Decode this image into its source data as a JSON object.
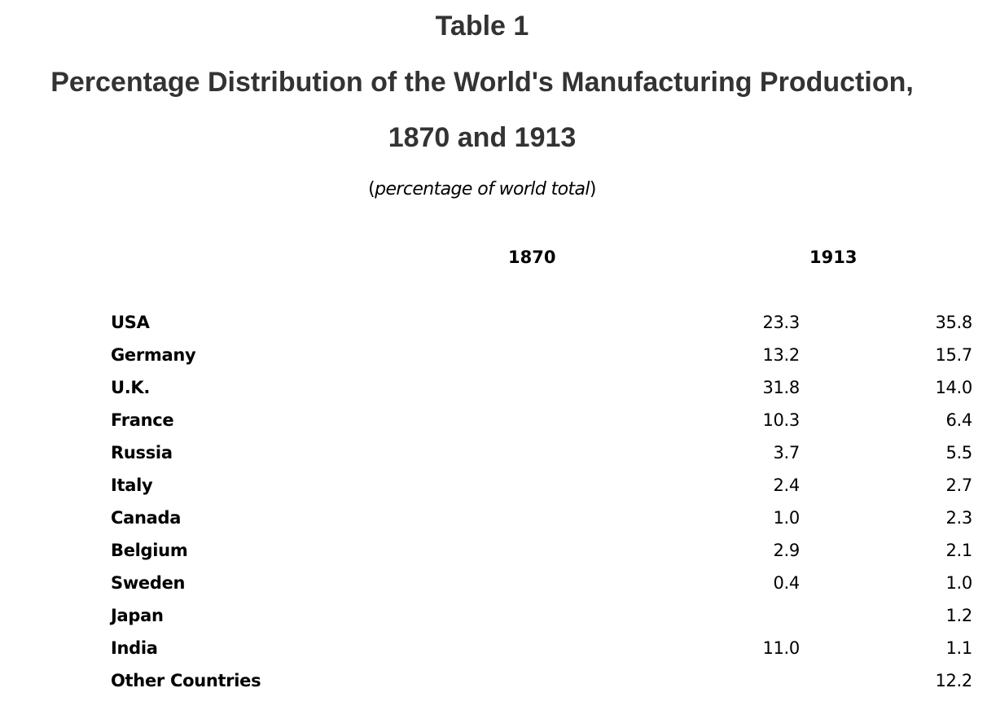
{
  "document": {
    "table_label": "Table 1",
    "title_main": "Percentage Distribution of the World's Manufacturing Production,",
    "title_years": "1870 and 1913",
    "subtitle_open": "(",
    "subtitle_text": "percentage of world total",
    "subtitle_close": ")"
  },
  "table": {
    "headers": {
      "country": "",
      "year_1870": "1870",
      "year_1913": "1913"
    },
    "rows": [
      {
        "country": "USA",
        "v1870": "23.3",
        "v1913": "35.8"
      },
      {
        "country": "Germany",
        "v1870": "13.2",
        "v1913": "15.7"
      },
      {
        "country": "U.K.",
        "v1870": "31.8",
        "v1913": "14.0"
      },
      {
        "country": "France",
        "v1870": "10.3",
        "v1913": "6.4"
      },
      {
        "country": "Russia",
        "v1870": "3.7",
        "v1913": "5.5"
      },
      {
        "country": "Italy",
        "v1870": "2.4",
        "v1913": "2.7"
      },
      {
        "country": "Canada",
        "v1870": "1.0",
        "v1913": "2.3"
      },
      {
        "country": "Belgium",
        "v1870": "2.9",
        "v1913": "2.1"
      },
      {
        "country": "Sweden",
        "v1870": "0.4",
        "v1913": "1.0"
      },
      {
        "country": "Japan",
        "v1870": "",
        "v1913": "1.2"
      },
      {
        "country": "India",
        "v1870": "11.0",
        "v1913": "1.1"
      },
      {
        "country": "Other Countries",
        "v1870": "",
        "v1913": "12.2"
      }
    ]
  },
  "colors": {
    "title": "#333333",
    "text": "#000000",
    "background": "#ffffff"
  }
}
